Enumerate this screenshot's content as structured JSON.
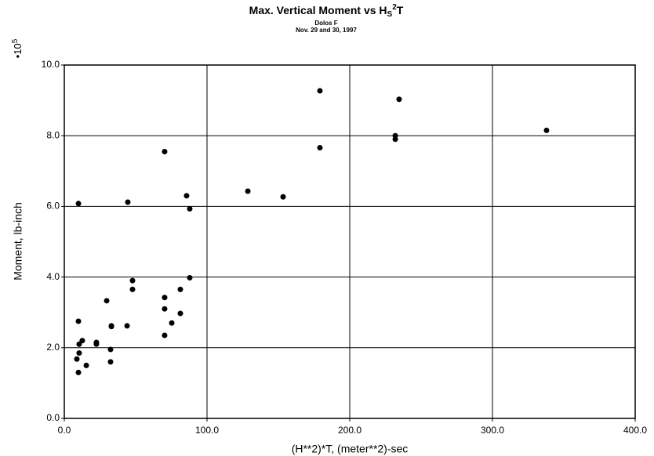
{
  "chart_data": {
    "type": "scatter",
    "title": "Max. Vertical Moment vs H",
    "title_sub": "S",
    "title_sup": "2",
    "title_end": "T",
    "subtitle": [
      "Dolos F",
      "Nov. 29 and 30, 1997"
    ],
    "x_label": "(H**2)*T, (meter**2)-sec",
    "y_label": "Moment, lb-inch",
    "y_multiplier": "•10",
    "y_multiplier_exp": "5",
    "color": "#000000",
    "grid": true,
    "xlim": [
      0,
      400
    ],
    "ylim": [
      0,
      10
    ],
    "xticks": [
      {
        "value": 0,
        "label": "0.0"
      },
      {
        "value": 100,
        "label": "100.0"
      },
      {
        "value": 200,
        "label": "200.0"
      },
      {
        "value": 300,
        "label": "300.0"
      },
      {
        "value": 400,
        "label": "400.0"
      }
    ],
    "yticks": [
      {
        "value": 0,
        "label": "0.0"
      },
      {
        "value": 2,
        "label": "2.0"
      },
      {
        "value": 4,
        "label": "4.0"
      },
      {
        "value": 6,
        "label": "6.0"
      },
      {
        "value": 8,
        "label": "8.0"
      },
      {
        "value": 10,
        "label": "10.0"
      }
    ],
    "x": [
      9.9,
      9.9,
      10.4,
      10.4,
      8.8,
      9.9,
      12.6,
      15.4,
      22.5,
      22.5,
      29.7,
      33,
      33,
      32.4,
      32.4,
      44,
      44.5,
      47.8,
      47.8,
      70.3,
      70.3,
      70.3,
      70.3,
      75.3,
      81.3,
      81.3,
      85.7,
      87.9,
      87.9,
      128.6,
      153.3,
      179.1,
      179.1,
      231.9,
      231.9,
      234.6,
      337.9
    ],
    "values": [
      6.08,
      2.75,
      2.1,
      1.85,
      1.68,
      1.3,
      2.2,
      1.5,
      2.15,
      2.1,
      3.33,
      2.62,
      2.6,
      1.95,
      1.6,
      2.62,
      6.12,
      3.9,
      3.65,
      7.55,
      3.42,
      3.1,
      2.35,
      2.7,
      3.65,
      2.97,
      6.3,
      5.93,
      3.98,
      6.43,
      6.27,
      9.27,
      7.66,
      8.0,
      7.9,
      9.03,
      8.15
    ]
  }
}
